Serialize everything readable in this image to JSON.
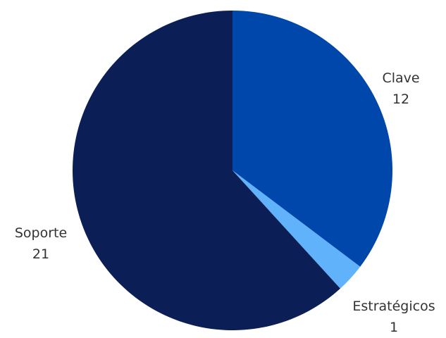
{
  "chart_data": {
    "type": "pie",
    "title": "",
    "slices": [
      {
        "label": "Clave",
        "value": 12,
        "color": "#0047ab"
      },
      {
        "label": "Estratégicos",
        "value": 1,
        "color": "#60b2fb"
      },
      {
        "label": "Soporte",
        "value": 21,
        "color": "#0b1f56"
      }
    ],
    "start_angle_deg": 0,
    "direction": "clockwise",
    "legend": "none",
    "data_labels": "outside"
  }
}
